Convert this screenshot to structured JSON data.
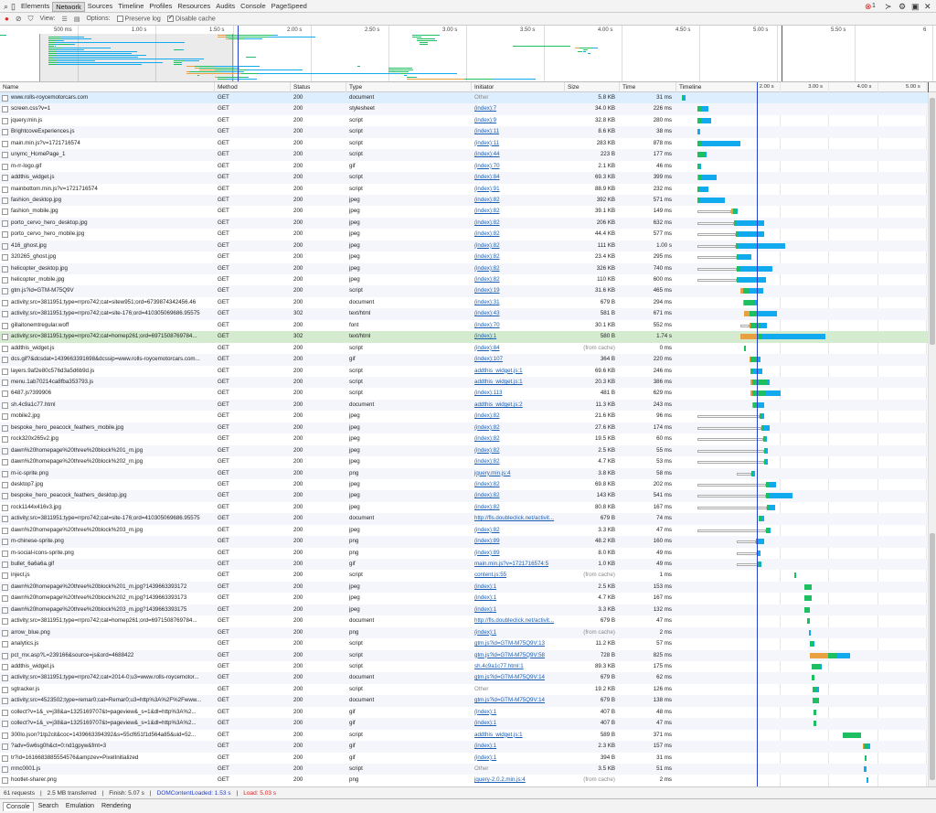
{
  "devtools": {
    "tabs": [
      "Elements",
      "Network",
      "Sources",
      "Timeline",
      "Profiles",
      "Resources",
      "Audits",
      "Console",
      "PageSpeed"
    ],
    "selected_tab": "Network",
    "error_count": "1",
    "error_icon": "error-circle-icon",
    "console_icon": "console-prompt-icon"
  },
  "toolbar": {
    "view_label": "View:",
    "options_label": "Options:",
    "preserve_log_label": "Preserve log",
    "preserve_log_checked": false,
    "disable_cache_label": "Disable cache",
    "disable_cache_checked": true
  },
  "overview": {
    "ticks": [
      "500 ms",
      "1.00 s",
      "1.50 s",
      "2.00 s",
      "2.50 s",
      "3.00 s",
      "3.50 s",
      "4.00 s",
      "4.50 s",
      "5.00 s",
      "5.50 s",
      "6"
    ],
    "tick_values_s": [
      0.5,
      1.0,
      1.5,
      2.0,
      2.5,
      3.0,
      3.5,
      4.0,
      4.5,
      5.0,
      5.5,
      6.0
    ],
    "selection_s": [
      0.25,
      1.5
    ]
  },
  "columns": {
    "name": "Name",
    "method": "Method",
    "status": "Status",
    "type": "Type",
    "initiator": "Initiator",
    "size": "Size",
    "time": "Time",
    "timeline": "Timeline"
  },
  "timeline_ticks": [
    "2.00 s",
    "3.00 s",
    "4.00 s",
    "5.00 s"
  ],
  "timeline_tick_values_s": [
    2.0,
    3.0,
    4.0,
    5.0
  ],
  "dom_content_loaded_s": 1.53,
  "load_s": 5.03,
  "colors": {
    "queue": "#e8a040",
    "wait": "#1dbf61",
    "receive": "#12aaee",
    "dcl": "#2640c8",
    "load": "#d22222"
  },
  "requests": [
    {
      "name": "www.rolls-roycemotorcars.com",
      "method": "GET",
      "status": "200",
      "type": "document",
      "initiator": "Other",
      "size": "5.8 KB",
      "time": "31 ms",
      "start": 0.0,
      "q": 0.0,
      "w": 0.03,
      "r": 0.01
    },
    {
      "name": "screen.css?v=1",
      "method": "GET",
      "status": "200",
      "type": "stylesheet",
      "initiator": "(index):7",
      "size": "34.0 KB",
      "time": "226 ms",
      "start": 0.31,
      "q": 0.0,
      "w": 0.08,
      "r": 0.15
    },
    {
      "name": "jquery.min.js",
      "method": "GET",
      "status": "200",
      "type": "script",
      "initiator": "(index):9",
      "size": "32.8 KB",
      "time": "280 ms",
      "start": 0.31,
      "q": 0.0,
      "w": 0.09,
      "r": 0.19
    },
    {
      "name": "BrightcoveExperiences.js",
      "method": "GET",
      "status": "200",
      "type": "script",
      "initiator": "(index):11",
      "size": "8.6 KB",
      "time": "38 ms",
      "start": 0.31,
      "q": 0.0,
      "w": 0.03,
      "r": 0.01
    },
    {
      "name": "main.min.js?v=1721716574",
      "method": "GET",
      "status": "200",
      "type": "script",
      "initiator": "(index):11",
      "size": "283 KB",
      "time": "878 ms",
      "start": 0.31,
      "q": 0.0,
      "w": 0.09,
      "r": 0.79
    },
    {
      "name": "unymc_HomePage_1",
      "method": "GET",
      "status": "200",
      "type": "script",
      "initiator": "(index):44",
      "size": "223 B",
      "time": "177 ms",
      "start": 0.31,
      "q": 0.0,
      "w": 0.15,
      "r": 0.02
    },
    {
      "name": "m-rr-logo.gif",
      "method": "GET",
      "status": "200",
      "type": "gif",
      "initiator": "(index):70",
      "size": "2.1 KB",
      "time": "46 ms",
      "start": 0.31,
      "q": 0.0,
      "w": 0.04,
      "r": 0.01
    },
    {
      "name": "addthis_widget.js",
      "method": "GET",
      "status": "200",
      "type": "script",
      "initiator": "(index):84",
      "size": "69.3 KB",
      "time": "399 ms",
      "start": 0.31,
      "q": 0.03,
      "w": 0.06,
      "r": 0.31
    },
    {
      "name": "mainbottom.min.js?v=1721716574",
      "method": "GET",
      "status": "200",
      "type": "script",
      "initiator": "(index):91",
      "size": "88.9 KB",
      "time": "232 ms",
      "start": 0.31,
      "q": 0.0,
      "w": 0.05,
      "r": 0.18
    },
    {
      "name": "fashion_desktop.jpg",
      "method": "GET",
      "status": "200",
      "type": "jpeg",
      "initiator": "(index):82",
      "size": "392 KB",
      "time": "571 ms",
      "start": 0.31,
      "q": 0.0,
      "w": 0.06,
      "r": 0.51
    },
    {
      "name": "fashion_mobile.jpg",
      "method": "GET",
      "status": "200",
      "type": "jpeg",
      "initiator": "(index):82",
      "size": "39.1 KB",
      "time": "149 ms",
      "start": 0.31,
      "pre": 0.7,
      "q": 0.03,
      "w": 0.06,
      "r": 0.03
    },
    {
      "name": "porto_cervo_hero_desktop.jpg",
      "method": "GET",
      "status": "200",
      "type": "jpeg",
      "initiator": "(index):82",
      "size": "206 KB",
      "time": "632 ms",
      "start": 0.31,
      "pre": 0.75,
      "q": 0.0,
      "w": 0.05,
      "r": 0.58
    },
    {
      "name": "porto_cervo_hero_mobile.jpg",
      "method": "GET",
      "status": "200",
      "type": "jpeg",
      "initiator": "(index):82",
      "size": "44.4 KB",
      "time": "577 ms",
      "start": 0.31,
      "pre": 0.8,
      "q": 0.0,
      "w": 0.03,
      "r": 0.55
    },
    {
      "name": "416_ghost.jpg",
      "method": "GET",
      "status": "200",
      "type": "jpeg",
      "initiator": "(index):82",
      "size": "111 KB",
      "time": "1.00 s",
      "start": 0.31,
      "pre": 0.8,
      "q": 0.0,
      "w": 0.06,
      "r": 0.94
    },
    {
      "name": "320265_ghost.jpg",
      "method": "GET",
      "status": "200",
      "type": "jpeg",
      "initiator": "(index):82",
      "size": "23.4 KB",
      "time": "295 ms",
      "start": 0.31,
      "pre": 0.81,
      "q": 0.0,
      "w": 0.05,
      "r": 0.25
    },
    {
      "name": "helicopter_desktop.jpg",
      "method": "GET",
      "status": "200",
      "type": "jpeg",
      "initiator": "(index):82",
      "size": "326 KB",
      "time": "740 ms",
      "start": 0.31,
      "pre": 0.81,
      "q": 0.0,
      "w": 0.06,
      "r": 0.68
    },
    {
      "name": "helicopter_mobile.jpg",
      "method": "GET",
      "status": "200",
      "type": "jpeg",
      "initiator": "(index):82",
      "size": "110 KB",
      "time": "600 ms",
      "start": 0.31,
      "pre": 0.81,
      "q": 0.0,
      "w": 0.05,
      "r": 0.55
    },
    {
      "name": "gtm.js?id=GTM-M75Q9V",
      "method": "GET",
      "status": "200",
      "type": "script",
      "initiator": "(index):19",
      "size": "31.6 KB",
      "time": "465 ms",
      "start": 1.2,
      "q": 0.05,
      "w": 0.12,
      "r": 0.3
    },
    {
      "name": "activity;src=3811951;type=rrpro742;cat=sitew951;ord=6739874342456.46",
      "method": "GET",
      "status": "200",
      "type": "document",
      "initiator": "(index):31",
      "size": "679 B",
      "time": "294 ms",
      "start": 1.25,
      "q": 0.03,
      "w": 0.22,
      "r": 0.04
    },
    {
      "name": "activity;src=3811951;type=rrpro742;cat=site-176;ord=410305069686.95575",
      "method": "GET",
      "status": "302",
      "type": "text/html",
      "initiator": "(index):43",
      "size": "581 B",
      "time": "671 ms",
      "start": 1.28,
      "q": 0.1,
      "w": 0.2,
      "r": 0.37
    },
    {
      "name": "gillaitonemtregular.woff",
      "method": "GET",
      "status": "200",
      "type": "font",
      "initiator": "(index):70",
      "size": "30.1 KB",
      "time": "552 ms",
      "start": 1.2,
      "pre": 0.18,
      "q": 0.02,
      "w": 0.2,
      "r": 0.15
    },
    {
      "name": "activity;src=3811951;type=rrpro742;cat=homep261;ord=6971508769784...",
      "method": "GET",
      "status": "302",
      "type": "text/html",
      "initiator": "(index):1",
      "size": "580 B",
      "time": "1.74 s",
      "start": 1.2,
      "q": 0.35,
      "w": 0.1,
      "r": 1.29,
      "selected": true
    },
    {
      "name": "addthis_widget.js",
      "method": "GET",
      "status": "200",
      "type": "script",
      "initiator": "(index):84",
      "size": "(from cache)",
      "time": "0 ms",
      "start": 1.27,
      "q": 0.0,
      "w": 0.01,
      "r": 0.0,
      "muted_size": true
    },
    {
      "name": "dcs.gif?&dcsdat=1439663391698&dcssip=www.rolls-roycemotorcars.com...",
      "method": "GET",
      "status": "200",
      "type": "gif",
      "initiator": "(index):107",
      "size": "364 B",
      "time": "220 ms",
      "start": 1.38,
      "q": 0.02,
      "w": 0.18,
      "r": 0.02
    },
    {
      "name": "layers.9af2e80c576d3a5d6b9d.js",
      "method": "GET",
      "status": "200",
      "type": "script",
      "initiator": "addthis_widget.js:1",
      "size": "69.6 KB",
      "time": "246 ms",
      "start": 1.4,
      "q": 0.0,
      "w": 0.05,
      "r": 0.2
    },
    {
      "name": "menu.1ab70214ca8fba353793.js",
      "method": "GET",
      "status": "200",
      "type": "script",
      "initiator": "addthis_widget.js:1",
      "size": "20.3 KB",
      "time": "386 ms",
      "start": 1.4,
      "q": 0.05,
      "w": 0.31,
      "r": 0.03
    },
    {
      "name": "6487.js?399906",
      "method": "GET",
      "status": "200",
      "type": "script",
      "initiator": "(index):113",
      "size": "481 B",
      "time": "629 ms",
      "start": 1.4,
      "q": 0.05,
      "w": 0.28,
      "r": 0.3
    },
    {
      "name": "sh.4c9a1c77.html",
      "method": "GET",
      "status": "200",
      "type": "document",
      "initiator": "addthis_widget.js:2",
      "size": "11.3 KB",
      "time": "243 ms",
      "start": 1.45,
      "q": 0.02,
      "w": 0.1,
      "r": 0.12
    },
    {
      "name": "mobile2.jpg",
      "method": "GET",
      "status": "200",
      "type": "jpeg",
      "initiator": "(index):82",
      "size": "21.6 KB",
      "time": "96 ms",
      "start": 0.31,
      "pre": 1.28,
      "q": 0.0,
      "w": 0.05,
      "r": 0.05
    },
    {
      "name": "bespoke_hero_peacock_feathers_mobile.jpg",
      "method": "GET",
      "status": "200",
      "type": "jpeg",
      "initiator": "(index):82",
      "size": "27.6 KB",
      "time": "174 ms",
      "start": 0.31,
      "pre": 1.32,
      "q": 0.0,
      "w": 0.05,
      "r": 0.12
    },
    {
      "name": "rock320x265v2.jpg",
      "method": "GET",
      "status": "200",
      "type": "jpeg",
      "initiator": "(index):82",
      "size": "19.5 KB",
      "time": "60 ms",
      "start": 0.31,
      "pre": 1.36,
      "q": 0.0,
      "w": 0.04,
      "r": 0.02
    },
    {
      "name": "dawn%20homepage%20three%20block%201_m.jpg",
      "method": "GET",
      "status": "200",
      "type": "jpeg",
      "initiator": "(index):82",
      "size": "2.5 KB",
      "time": "55 ms",
      "start": 0.31,
      "pre": 1.38,
      "q": 0.0,
      "w": 0.04,
      "r": 0.01
    },
    {
      "name": "dawn%20homepage%20three%20block%202_m.jpg",
      "method": "GET",
      "status": "200",
      "type": "jpeg",
      "initiator": "(index):82",
      "size": "4.7 KB",
      "time": "53 ms",
      "start": 0.31,
      "pre": 1.38,
      "q": 0.0,
      "w": 0.04,
      "r": 0.01
    },
    {
      "name": "m-ic-sprite.png",
      "method": "GET",
      "status": "200",
      "type": "png",
      "initiator": "jquery.min.js:4",
      "size": "3.8 KB",
      "time": "58 ms",
      "start": 1.12,
      "pre": 0.3,
      "q": 0.0,
      "w": 0.04,
      "r": 0.02
    },
    {
      "name": "desktop7.jpg",
      "method": "GET",
      "status": "200",
      "type": "jpeg",
      "initiator": "(index):82",
      "size": "69.8 KB",
      "time": "202 ms",
      "start": 0.31,
      "pre": 1.42,
      "q": 0.0,
      "w": 0.05,
      "r": 0.15
    },
    {
      "name": "bespoke_hero_peacock_feathers_desktop.jpg",
      "method": "GET",
      "status": "200",
      "type": "jpeg",
      "initiator": "(index):82",
      "size": "143 KB",
      "time": "541 ms",
      "start": 0.31,
      "pre": 1.42,
      "q": 0.0,
      "w": 0.05,
      "r": 0.49
    },
    {
      "name": "rock1144x416v3.jpg",
      "method": "GET",
      "status": "200",
      "type": "jpeg",
      "initiator": "(index):82",
      "size": "80.8 KB",
      "time": "167 ms",
      "start": 0.31,
      "pre": 1.43,
      "q": 0.0,
      "w": 0.05,
      "r": 0.12
    },
    {
      "name": "activity;src=3811951;type=rrpro742;cat=site-176;ord=410305069686.95575",
      "method": "GET",
      "status": "200",
      "type": "document",
      "initiator": "http://fls.doubleclick.net/activit...",
      "size": "679 B",
      "time": "74 ms",
      "start": 1.58,
      "q": 0.0,
      "w": 0.06,
      "r": 0.01
    },
    {
      "name": "dawn%20homepage%20three%20block%203_m.jpg",
      "method": "GET",
      "status": "200",
      "type": "jpeg",
      "initiator": "(index):82",
      "size": "3.3 KB",
      "time": "47 ms",
      "start": 0.31,
      "pre": 1.42,
      "q": 0.0,
      "w": 0.04,
      "r": 0.01
    },
    {
      "name": "m-chinese-sprite.png",
      "method": "GET",
      "status": "200",
      "type": "png",
      "initiator": "(index):89",
      "size": "48.2 KB",
      "time": "160 ms",
      "start": 1.12,
      "pre": 0.4,
      "q": 0.0,
      "w": 0.06,
      "r": 0.1
    },
    {
      "name": "m-social-icons-sprite.png",
      "method": "GET",
      "status": "200",
      "type": "png",
      "initiator": "(index):89",
      "size": "8.0 KB",
      "time": "49 ms",
      "start": 1.12,
      "pre": 0.42,
      "q": 0.0,
      "w": 0.04,
      "r": 0.01
    },
    {
      "name": "bullet_6a6a6a.gif",
      "method": "GET",
      "status": "200",
      "type": "gif",
      "initiator": "main.min.js?v=1721716574:5",
      "size": "1.0 KB",
      "time": "49 ms",
      "start": 1.12,
      "pre": 0.44,
      "q": 0.0,
      "w": 0.04,
      "r": 0.01
    },
    {
      "name": "inject.js",
      "method": "GET",
      "status": "200",
      "type": "script",
      "initiator": "content.js:55",
      "size": "(from cache)",
      "time": "1 ms",
      "start": 2.3,
      "q": 0.0,
      "w": 0.02,
      "r": 0.0,
      "muted_size": true,
      "receive_only": true
    },
    {
      "name": "dawn%20homepage%20three%20block%201_m.jpg?1439663393172",
      "method": "GET",
      "status": "200",
      "type": "jpeg",
      "initiator": "(index):1",
      "size": "2.5 KB",
      "time": "153 ms",
      "start": 2.5,
      "q": 0.0,
      "w": 0.15,
      "r": 0.0
    },
    {
      "name": "dawn%20homepage%20three%20block%202_m.jpg?1439663393173",
      "method": "GET",
      "status": "200",
      "type": "jpeg",
      "initiator": "(index):1",
      "size": "4.7 KB",
      "time": "167 ms",
      "start": 2.5,
      "q": 0.0,
      "w": 0.16,
      "r": 0.0
    },
    {
      "name": "dawn%20homepage%20three%20block%203_m.jpg?1439663393175",
      "method": "GET",
      "status": "200",
      "type": "jpeg",
      "initiator": "(index):1",
      "size": "3.3 KB",
      "time": "132 ms",
      "start": 2.5,
      "q": 0.0,
      "w": 0.13,
      "r": 0.0
    },
    {
      "name": "activity;src=3811951;type=rrpro742;cat=homep261;ord=6971508769784...",
      "method": "GET",
      "status": "200",
      "type": "document",
      "initiator": "http://fls.doubleclick.net/activit...",
      "size": "679 B",
      "time": "47 ms",
      "start": 2.57,
      "q": 0.0,
      "w": 0.05,
      "r": 0.0
    },
    {
      "name": "arrow_blue.png",
      "method": "GET",
      "status": "200",
      "type": "png",
      "initiator": "(index):1",
      "size": "(from cache)",
      "time": "2 ms",
      "start": 2.6,
      "q": 0.0,
      "w": 0.0,
      "r": 0.02,
      "muted_size": true
    },
    {
      "name": "analytics.js",
      "method": "GET",
      "status": "200",
      "type": "script",
      "initiator": "gtm.js?id=GTM-M75Q9V:13",
      "size": "11.2 KB",
      "time": "57 ms",
      "start": 2.62,
      "q": 0.0,
      "w": 0.05,
      "r": 0.01
    },
    {
      "name": "pct_mx.asp?L=239166&source=js&ord=4688422",
      "method": "GET",
      "status": "200",
      "type": "script",
      "initiator": "gtm.js?id=GTM-M75Q9V:58",
      "size": "728 B",
      "time": "825 ms",
      "start": 2.62,
      "q": 0.37,
      "w": 0.18,
      "r": 0.28
    },
    {
      "name": "addthis_widget.js",
      "method": "GET",
      "status": "200",
      "type": "script",
      "initiator": "sh.4c9a1c77.html:1",
      "size": "89.3 KB",
      "time": "175 ms",
      "start": 2.65,
      "q": 0.0,
      "w": 0.17,
      "r": 0.01
    },
    {
      "name": "activity;src=3811951;type=rrpro742;cat=2014-0;u3=www.rolls-roycemotor...",
      "method": "GET",
      "status": "200",
      "type": "document",
      "initiator": "gtm.js?id=GTM-M75Q9V:14",
      "size": "679 B",
      "time": "62 ms",
      "start": 2.65,
      "q": 0.0,
      "w": 0.06,
      "r": 0.0
    },
    {
      "name": "sgtracker.js",
      "method": "GET",
      "status": "200",
      "type": "script",
      "initiator": "Other",
      "size": "19.2 KB",
      "time": "126 ms",
      "start": 2.68,
      "q": 0.0,
      "w": 0.1,
      "r": 0.02
    },
    {
      "name": "activity;src=4523502;type=remar0;cat=Remar0;u3=http%3A%2F%2Fwww...",
      "method": "GET",
      "status": "200",
      "type": "document",
      "initiator": "gtm.js?id=GTM-M75Q9V:14",
      "size": "679 B",
      "time": "138 ms",
      "start": 2.68,
      "q": 0.0,
      "w": 0.13,
      "r": 0.0
    },
    {
      "name": "collect?v=1&_v=j38&a=1325169707&t=pageview&_s=1&dl=http%3A%2...",
      "method": "GET",
      "status": "200",
      "type": "gif",
      "initiator": "(index):1",
      "size": "407 B",
      "time": "48 ms",
      "start": 2.7,
      "q": 0.0,
      "w": 0.05,
      "r": 0.0
    },
    {
      "name": "collect?v=1&_v=j38&a=1325169707&t=pageview&_s=1&dl=http%3A%2...",
      "method": "GET",
      "status": "200",
      "type": "gif",
      "initiator": "(index):1",
      "size": "407 B",
      "time": "47 ms",
      "start": 2.7,
      "q": 0.0,
      "w": 0.05,
      "r": 0.0
    },
    {
      "name": "300lo.json?1tp2cit&coc=1439663394392&s=55cf651f1d564a85&uid=52...",
      "method": "GET",
      "status": "200",
      "type": "script",
      "initiator": "addthis_widget.js:1",
      "size": "589 B",
      "time": "371 ms",
      "start": 3.3,
      "q": 0.0,
      "w": 0.37,
      "r": 0.0
    },
    {
      "name": "?adv=5w6sg0h&ct=0:nd1gpyw&fmt=3",
      "method": "GET",
      "status": "200",
      "type": "gif",
      "initiator": "(index):1",
      "size": "2.3 KB",
      "time": "157 ms",
      "start": 3.7,
      "q": 0.03,
      "w": 0.08,
      "r": 0.04
    },
    {
      "name": "tr?id=1616683885554576&ampzev=PixelInitialized",
      "method": "GET",
      "status": "200",
      "type": "gif",
      "initiator": "(index):1",
      "size": "394 B",
      "time": "31 ms",
      "start": 3.75,
      "q": 0.0,
      "w": 0.03,
      "r": 0.0
    },
    {
      "name": "rrmc0001.js",
      "method": "GET",
      "status": "200",
      "type": "script",
      "initiator": "Other",
      "size": "3.5 KB",
      "time": "51 ms",
      "start": 3.72,
      "q": 0.0,
      "w": 0.03,
      "r": 0.02
    },
    {
      "name": "hootlet-sharer.png",
      "method": "GET",
      "status": "200",
      "type": "png",
      "initiator": "jquery-2.0.2.min.js:4",
      "size": "(from cache)",
      "time": "2 ms",
      "start": 3.78,
      "q": 0.0,
      "w": 0.0,
      "r": 0.02,
      "muted_size": true
    }
  ],
  "status_bar": {
    "requests": "61 requests",
    "transferred": "2.5 MB transferred",
    "finish": "Finish: 5.07 s",
    "dcl": "DOMContentLoaded: 1.53 s",
    "load": "Load: 5.03 s"
  },
  "drawer": {
    "tabs": [
      "Console",
      "Search",
      "Emulation",
      "Rendering"
    ],
    "selected_tab": "Console"
  }
}
